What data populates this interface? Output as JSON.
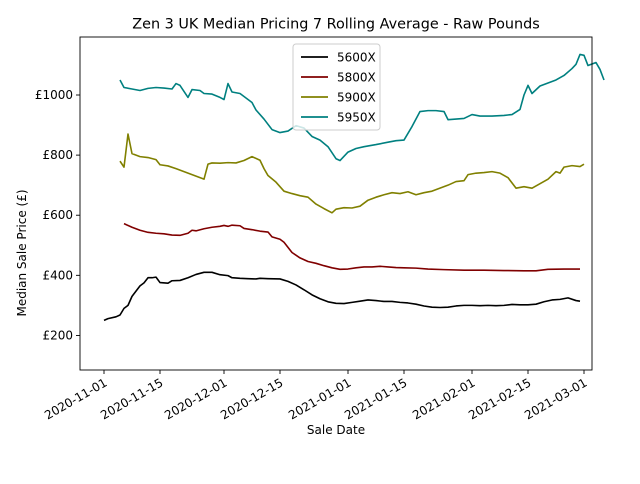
{
  "chart_data": {
    "type": "line",
    "title": "Zen 3 UK Median Pricing 7 Rolling Average - Raw Pounds",
    "xlabel": "Sale Date",
    "ylabel": "Median Sale Price (£)",
    "x_range": [
      "2020-10-26",
      "2021-03-03"
    ],
    "y_range": [
      85,
      1193
    ],
    "x_ticks": [
      "2020-11-01",
      "2020-11-15",
      "2020-12-01",
      "2020-12-15",
      "2021-01-01",
      "2021-01-15",
      "2021-02-01",
      "2021-02-15",
      "2021-03-01"
    ],
    "y_ticks": [
      {
        "value": 200,
        "label": "£200"
      },
      {
        "value": 400,
        "label": "£400"
      },
      {
        "value": 600,
        "label": "£600"
      },
      {
        "value": 800,
        "label": "£800"
      },
      {
        "value": 1000,
        "label": "£1000"
      }
    ],
    "grid": false,
    "legend_position": "top-center",
    "series": [
      {
        "name": "5600X",
        "color": "#000000",
        "points": [
          [
            "2020-11-01",
            250
          ],
          [
            "2020-11-02",
            256
          ],
          [
            "2020-11-04",
            262
          ],
          [
            "2020-11-05",
            268
          ],
          [
            "2020-11-06",
            290
          ],
          [
            "2020-11-07",
            300
          ],
          [
            "2020-11-08",
            330
          ],
          [
            "2020-11-10",
            365
          ],
          [
            "2020-11-11",
            375
          ],
          [
            "2020-11-12",
            392
          ],
          [
            "2020-11-13",
            392
          ],
          [
            "2020-11-14",
            394
          ],
          [
            "2020-11-15",
            376
          ],
          [
            "2020-11-17",
            374
          ],
          [
            "2020-11-18",
            382
          ],
          [
            "2020-11-20",
            383
          ],
          [
            "2020-11-22",
            392
          ],
          [
            "2020-11-24",
            403
          ],
          [
            "2020-11-26",
            410
          ],
          [
            "2020-11-28",
            410
          ],
          [
            "2020-11-30",
            402
          ],
          [
            "2020-12-02",
            399
          ],
          [
            "2020-12-03",
            392
          ],
          [
            "2020-12-05",
            390
          ],
          [
            "2020-12-07",
            389
          ],
          [
            "2020-12-09",
            388
          ],
          [
            "2020-12-10",
            390
          ],
          [
            "2020-12-12",
            389
          ],
          [
            "2020-12-15",
            388
          ],
          [
            "2020-12-17",
            380
          ],
          [
            "2020-12-19",
            368
          ],
          [
            "2020-12-21",
            352
          ],
          [
            "2020-12-23",
            335
          ],
          [
            "2020-12-25",
            322
          ],
          [
            "2020-12-27",
            312
          ],
          [
            "2020-12-29",
            307
          ],
          [
            "2020-12-31",
            306
          ],
          [
            "2021-01-02",
            310
          ],
          [
            "2021-01-04",
            314
          ],
          [
            "2021-01-06",
            318
          ],
          [
            "2021-01-08",
            316
          ],
          [
            "2021-01-10",
            313
          ],
          [
            "2021-01-12",
            313
          ],
          [
            "2021-01-14",
            310
          ],
          [
            "2021-01-16",
            308
          ],
          [
            "2021-01-18",
            304
          ],
          [
            "2021-01-20",
            298
          ],
          [
            "2021-01-22",
            294
          ],
          [
            "2021-01-24",
            293
          ],
          [
            "2021-01-26",
            294
          ],
          [
            "2021-01-28",
            298
          ],
          [
            "2021-01-30",
            300
          ],
          [
            "2021-02-01",
            300
          ],
          [
            "2021-02-03",
            299
          ],
          [
            "2021-02-05",
            300
          ],
          [
            "2021-02-07",
            299
          ],
          [
            "2021-02-09",
            300
          ],
          [
            "2021-02-11",
            303
          ],
          [
            "2021-02-13",
            302
          ],
          [
            "2021-02-15",
            302
          ],
          [
            "2021-02-17",
            304
          ],
          [
            "2021-02-19",
            312
          ],
          [
            "2021-02-21",
            318
          ],
          [
            "2021-02-23",
            320
          ],
          [
            "2021-02-25",
            325
          ],
          [
            "2021-02-27",
            316
          ],
          [
            "2021-02-28",
            314
          ]
        ]
      },
      {
        "name": "5800X",
        "color": "#800000",
        "points": [
          [
            "2020-11-06",
            572
          ],
          [
            "2020-11-08",
            560
          ],
          [
            "2020-11-10",
            550
          ],
          [
            "2020-11-12",
            543
          ],
          [
            "2020-11-14",
            540
          ],
          [
            "2020-11-16",
            538
          ],
          [
            "2020-11-18",
            534
          ],
          [
            "2020-11-20",
            533
          ],
          [
            "2020-11-22",
            540
          ],
          [
            "2020-11-23",
            550
          ],
          [
            "2020-11-24",
            548
          ],
          [
            "2020-11-26",
            555
          ],
          [
            "2020-11-28",
            560
          ],
          [
            "2020-11-30",
            563
          ],
          [
            "2020-12-01",
            566
          ],
          [
            "2020-12-02",
            563
          ],
          [
            "2020-12-03",
            567
          ],
          [
            "2020-12-05",
            565
          ],
          [
            "2020-12-06",
            556
          ],
          [
            "2020-12-08",
            552
          ],
          [
            "2020-12-10",
            547
          ],
          [
            "2020-12-12",
            544
          ],
          [
            "2020-12-13",
            528
          ],
          [
            "2020-12-15",
            520
          ],
          [
            "2020-12-16",
            510
          ],
          [
            "2020-12-18",
            476
          ],
          [
            "2020-12-20",
            458
          ],
          [
            "2020-12-22",
            446
          ],
          [
            "2020-12-24",
            440
          ],
          [
            "2020-12-26",
            432
          ],
          [
            "2020-12-28",
            425
          ],
          [
            "2020-12-30",
            420
          ],
          [
            "2021-01-01",
            421
          ],
          [
            "2021-01-03",
            425
          ],
          [
            "2021-01-05",
            428
          ],
          [
            "2021-01-07",
            428
          ],
          [
            "2021-01-09",
            430
          ],
          [
            "2021-01-11",
            428
          ],
          [
            "2021-01-13",
            426
          ],
          [
            "2021-01-15",
            425
          ],
          [
            "2021-01-18",
            424
          ],
          [
            "2021-01-21",
            421
          ],
          [
            "2021-01-25",
            419
          ],
          [
            "2021-01-30",
            417
          ],
          [
            "2021-02-04",
            417
          ],
          [
            "2021-02-09",
            416
          ],
          [
            "2021-02-14",
            415
          ],
          [
            "2021-02-17",
            415
          ],
          [
            "2021-02-20",
            420
          ],
          [
            "2021-02-24",
            421
          ],
          [
            "2021-02-28",
            421
          ]
        ]
      },
      {
        "name": "5900X",
        "color": "#808000",
        "points": [
          [
            "2020-11-05",
            780
          ],
          [
            "2020-11-06",
            760
          ],
          [
            "2020-11-07",
            870
          ],
          [
            "2020-11-08",
            805
          ],
          [
            "2020-11-10",
            795
          ],
          [
            "2020-11-12",
            792
          ],
          [
            "2020-11-14",
            785
          ],
          [
            "2020-11-15",
            768
          ],
          [
            "2020-11-17",
            764
          ],
          [
            "2020-11-19",
            755
          ],
          [
            "2020-11-21",
            745
          ],
          [
            "2020-11-23",
            735
          ],
          [
            "2020-11-25",
            725
          ],
          [
            "2020-11-26",
            720
          ],
          [
            "2020-11-27",
            770
          ],
          [
            "2020-11-28",
            774
          ],
          [
            "2020-11-30",
            773
          ],
          [
            "2020-12-02",
            775
          ],
          [
            "2020-12-04",
            774
          ],
          [
            "2020-12-06",
            782
          ],
          [
            "2020-12-08",
            795
          ],
          [
            "2020-12-10",
            783
          ],
          [
            "2020-12-11",
            755
          ],
          [
            "2020-12-12",
            732
          ],
          [
            "2020-12-14",
            710
          ],
          [
            "2020-12-16",
            680
          ],
          [
            "2020-12-18",
            672
          ],
          [
            "2020-12-20",
            665
          ],
          [
            "2020-12-22",
            660
          ],
          [
            "2020-12-24",
            637
          ],
          [
            "2020-12-26",
            622
          ],
          [
            "2020-12-28",
            608
          ],
          [
            "2020-12-29",
            620
          ],
          [
            "2020-12-31",
            625
          ],
          [
            "2021-01-02",
            624
          ],
          [
            "2021-01-04",
            630
          ],
          [
            "2021-01-06",
            650
          ],
          [
            "2021-01-08",
            660
          ],
          [
            "2021-01-10",
            668
          ],
          [
            "2021-01-12",
            675
          ],
          [
            "2021-01-14",
            672
          ],
          [
            "2021-01-16",
            678
          ],
          [
            "2021-01-18",
            668
          ],
          [
            "2021-01-20",
            675
          ],
          [
            "2021-01-22",
            680
          ],
          [
            "2021-01-24",
            690
          ],
          [
            "2021-01-26",
            700
          ],
          [
            "2021-01-28",
            712
          ],
          [
            "2021-01-30",
            715
          ],
          [
            "2021-01-31",
            735
          ],
          [
            "2021-02-02",
            740
          ],
          [
            "2021-02-04",
            742
          ],
          [
            "2021-02-06",
            745
          ],
          [
            "2021-02-08",
            740
          ],
          [
            "2021-02-10",
            725
          ],
          [
            "2021-02-12",
            690
          ],
          [
            "2021-02-14",
            695
          ],
          [
            "2021-02-16",
            690
          ],
          [
            "2021-02-18",
            705
          ],
          [
            "2021-02-20",
            720
          ],
          [
            "2021-02-22",
            745
          ],
          [
            "2021-02-23",
            740
          ],
          [
            "2021-02-24",
            760
          ],
          [
            "2021-02-26",
            765
          ],
          [
            "2021-02-28",
            762
          ],
          [
            "2021-03-01",
            770
          ]
        ]
      },
      {
        "name": "5950X",
        "color": "#008080",
        "points": [
          [
            "2020-11-05",
            1050
          ],
          [
            "2020-11-06",
            1025
          ],
          [
            "2020-11-08",
            1020
          ],
          [
            "2020-11-10",
            1015
          ],
          [
            "2020-11-12",
            1022
          ],
          [
            "2020-11-14",
            1025
          ],
          [
            "2020-11-16",
            1023
          ],
          [
            "2020-11-18",
            1020
          ],
          [
            "2020-11-19",
            1038
          ],
          [
            "2020-11-20",
            1032
          ],
          [
            "2020-11-22",
            992
          ],
          [
            "2020-11-23",
            1018
          ],
          [
            "2020-11-25",
            1015
          ],
          [
            "2020-11-26",
            1005
          ],
          [
            "2020-11-28",
            1003
          ],
          [
            "2020-11-30",
            992
          ],
          [
            "2020-12-01",
            985
          ],
          [
            "2020-12-02",
            1038
          ],
          [
            "2020-12-03",
            1010
          ],
          [
            "2020-12-05",
            1005
          ],
          [
            "2020-12-06",
            995
          ],
          [
            "2020-12-08",
            975
          ],
          [
            "2020-12-09",
            950
          ],
          [
            "2020-12-11",
            920
          ],
          [
            "2020-12-13",
            885
          ],
          [
            "2020-12-15",
            875
          ],
          [
            "2020-12-17",
            880
          ],
          [
            "2020-12-19",
            898
          ],
          [
            "2020-12-21",
            890
          ],
          [
            "2020-12-23",
            862
          ],
          [
            "2020-12-25",
            850
          ],
          [
            "2020-12-27",
            828
          ],
          [
            "2020-12-29",
            788
          ],
          [
            "2020-12-30",
            782
          ],
          [
            "2021-01-01",
            810
          ],
          [
            "2021-01-03",
            822
          ],
          [
            "2021-01-05",
            828
          ],
          [
            "2021-01-08",
            835
          ],
          [
            "2021-01-11",
            843
          ],
          [
            "2021-01-13",
            848
          ],
          [
            "2021-01-15",
            850
          ],
          [
            "2021-01-17",
            895
          ],
          [
            "2021-01-19",
            945
          ],
          [
            "2021-01-21",
            948
          ],
          [
            "2021-01-23",
            948
          ],
          [
            "2021-01-25",
            945
          ],
          [
            "2021-01-26",
            918
          ],
          [
            "2021-01-28",
            920
          ],
          [
            "2021-01-30",
            922
          ],
          [
            "2021-02-01",
            935
          ],
          [
            "2021-02-03",
            930
          ],
          [
            "2021-02-06",
            930
          ],
          [
            "2021-02-09",
            932
          ],
          [
            "2021-02-11",
            935
          ],
          [
            "2021-02-13",
            952
          ],
          [
            "2021-02-14",
            1000
          ],
          [
            "2021-02-15",
            1032
          ],
          [
            "2021-02-16",
            1005
          ],
          [
            "2021-02-18",
            1030
          ],
          [
            "2021-02-20",
            1040
          ],
          [
            "2021-02-22",
            1050
          ],
          [
            "2021-02-24",
            1065
          ],
          [
            "2021-02-26",
            1088
          ],
          [
            "2021-02-27",
            1102
          ],
          [
            "2021-02-28",
            1135
          ],
          [
            "2021-03-01",
            1132
          ],
          [
            "2021-03-02",
            1098
          ],
          [
            "2021-03-04",
            1108
          ],
          [
            "2021-03-05",
            1085
          ],
          [
            "2021-03-06",
            1050
          ]
        ]
      }
    ]
  }
}
